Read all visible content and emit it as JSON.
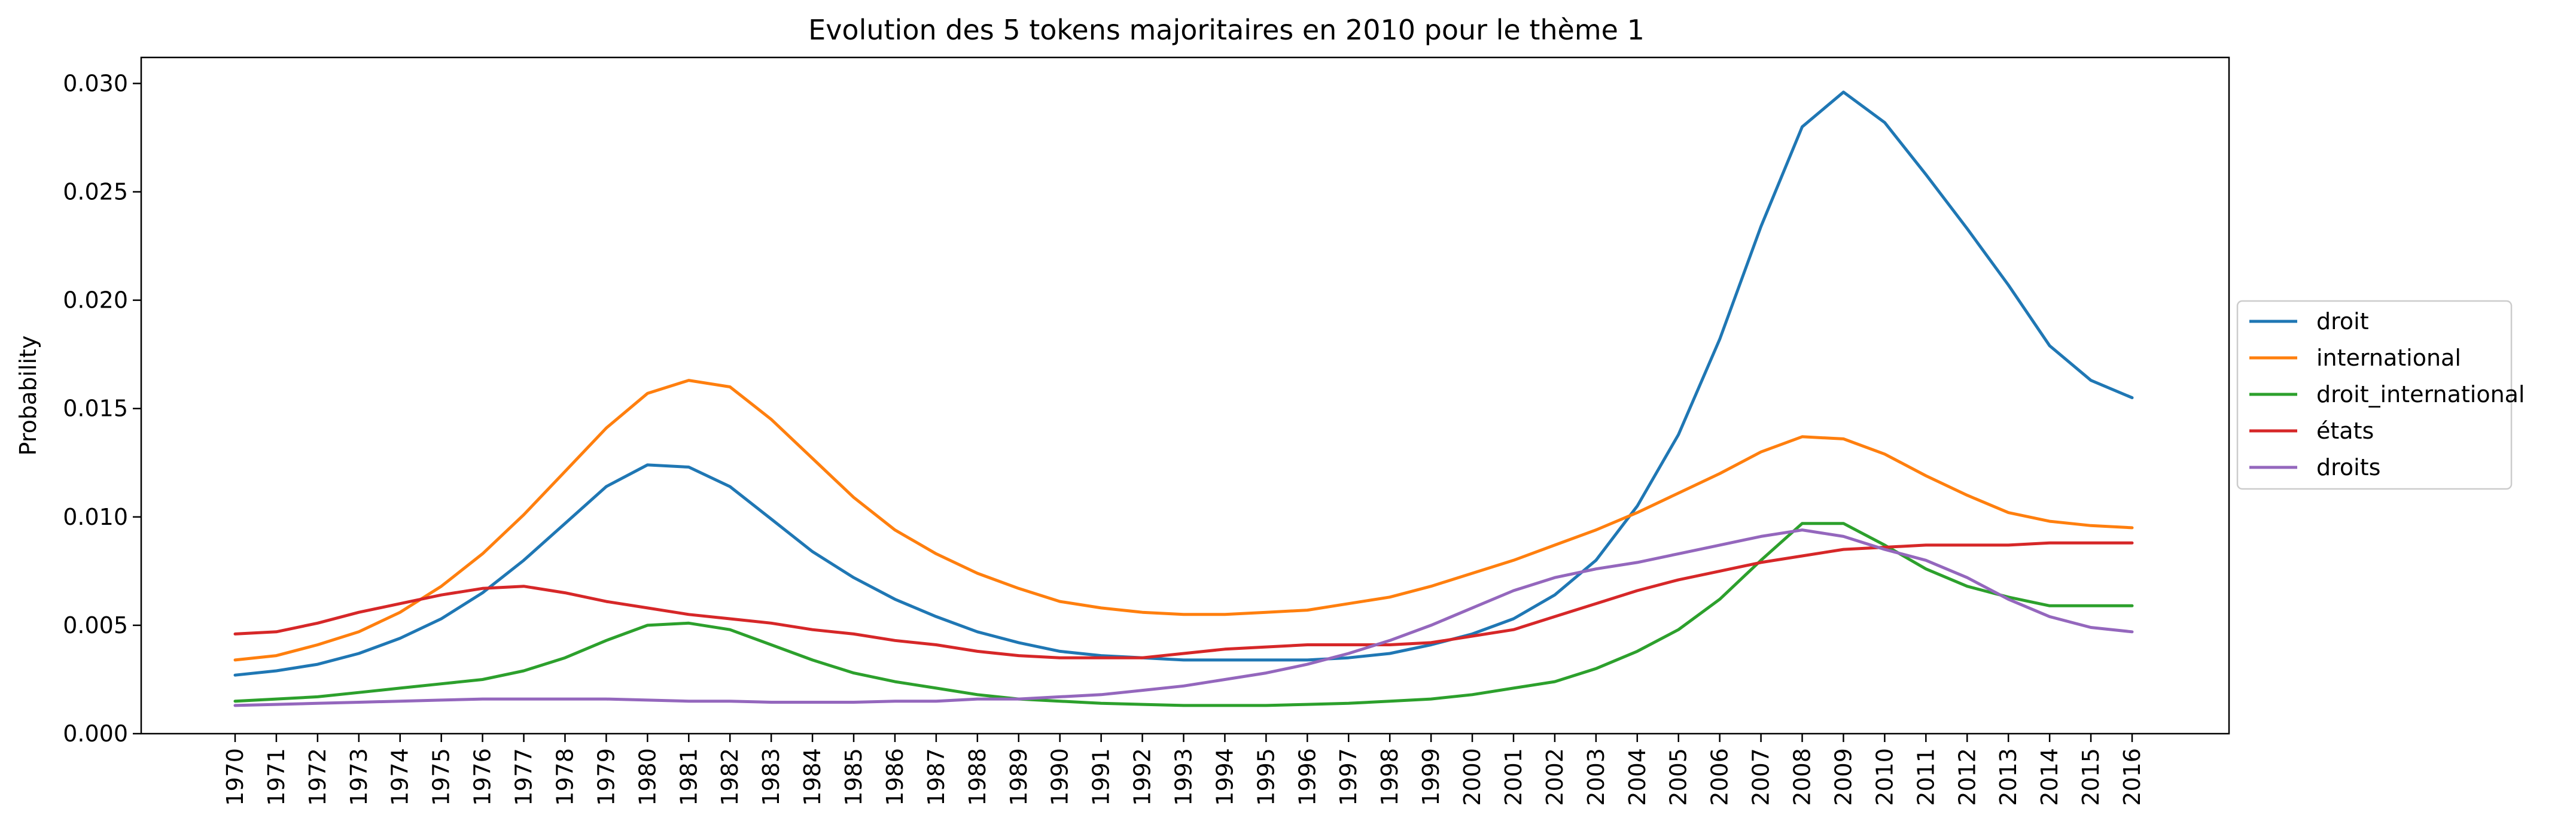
{
  "chart_data": {
    "type": "line",
    "title": "Evolution des 5 tokens majoritaires en 2010 pour le thème 1",
    "xlabel": "",
    "ylabel": "Probability",
    "x": [
      "1970",
      "1971",
      "1972",
      "1973",
      "1974",
      "1975",
      "1976",
      "1977",
      "1978",
      "1979",
      "1980",
      "1981",
      "1982",
      "1983",
      "1984",
      "1985",
      "1986",
      "1987",
      "1988",
      "1989",
      "1990",
      "1991",
      "1992",
      "1993",
      "1994",
      "1995",
      "1996",
      "1997",
      "1998",
      "1999",
      "2000",
      "2001",
      "2002",
      "2003",
      "2004",
      "2005",
      "2006",
      "2007",
      "2008",
      "2009",
      "2010",
      "2011",
      "2012",
      "2013",
      "2014",
      "2015",
      "2016"
    ],
    "ylim": [
      0,
      0.0312
    ],
    "yticks": [
      "0.000",
      "0.005",
      "0.010",
      "0.015",
      "0.020",
      "0.025",
      "0.030"
    ],
    "grid": false,
    "legend_position": "center-right, outside plot",
    "series": [
      {
        "name": "droit",
        "color": "#1f77b4",
        "values": [
          0.0027,
          0.0029,
          0.0032,
          0.0037,
          0.0044,
          0.0053,
          0.0065,
          0.008,
          0.0097,
          0.0114,
          0.0124,
          0.0123,
          0.0114,
          0.0099,
          0.0084,
          0.0072,
          0.0062,
          0.0054,
          0.0047,
          0.0042,
          0.0038,
          0.0036,
          0.0035,
          0.0034,
          0.0034,
          0.0034,
          0.0034,
          0.0035,
          0.0037,
          0.0041,
          0.0046,
          0.0053,
          0.0064,
          0.008,
          0.0105,
          0.0138,
          0.0182,
          0.0234,
          0.028,
          0.0296,
          0.0282,
          0.0258,
          0.0233,
          0.0207,
          0.0179,
          0.0163,
          0.0155
        ]
      },
      {
        "name": "international",
        "color": "#ff7f0e",
        "values": [
          0.0034,
          0.0036,
          0.0041,
          0.0047,
          0.0056,
          0.0068,
          0.0083,
          0.0101,
          0.0121,
          0.0141,
          0.0157,
          0.0163,
          0.016,
          0.0145,
          0.0127,
          0.0109,
          0.0094,
          0.0083,
          0.0074,
          0.0067,
          0.0061,
          0.0058,
          0.0056,
          0.0055,
          0.0055,
          0.0056,
          0.0057,
          0.006,
          0.0063,
          0.0068,
          0.0074,
          0.008,
          0.0087,
          0.0094,
          0.0102,
          0.0111,
          0.012,
          0.013,
          0.0137,
          0.0136,
          0.0129,
          0.0119,
          0.011,
          0.0102,
          0.0098,
          0.0096,
          0.0095
        ]
      },
      {
        "name": "droit_international",
        "color": "#2ca02c",
        "values": [
          0.0015,
          0.0016,
          0.0017,
          0.0019,
          0.0021,
          0.0023,
          0.0025,
          0.0029,
          0.0035,
          0.0043,
          0.005,
          0.0051,
          0.0048,
          0.0041,
          0.0034,
          0.0028,
          0.0024,
          0.0021,
          0.0018,
          0.0016,
          0.0015,
          0.0014,
          0.00135,
          0.0013,
          0.0013,
          0.0013,
          0.00135,
          0.0014,
          0.0015,
          0.0016,
          0.0018,
          0.0021,
          0.0024,
          0.003,
          0.0038,
          0.0048,
          0.0062,
          0.008,
          0.0097,
          0.0097,
          0.0087,
          0.0076,
          0.0068,
          0.0063,
          0.0059,
          0.0059,
          0.0059
        ]
      },
      {
        "name": "états",
        "color": "#d62728",
        "values": [
          0.0046,
          0.0047,
          0.0051,
          0.0056,
          0.006,
          0.0064,
          0.0067,
          0.0068,
          0.0065,
          0.0061,
          0.0058,
          0.0055,
          0.0053,
          0.0051,
          0.0048,
          0.0046,
          0.0043,
          0.0041,
          0.0038,
          0.0036,
          0.0035,
          0.0035,
          0.0035,
          0.0037,
          0.0039,
          0.004,
          0.0041,
          0.0041,
          0.0041,
          0.0042,
          0.0045,
          0.0048,
          0.0054,
          0.006,
          0.0066,
          0.0071,
          0.0075,
          0.0079,
          0.0082,
          0.0085,
          0.0086,
          0.0087,
          0.0087,
          0.0087,
          0.0088,
          0.0088,
          0.0088
        ]
      },
      {
        "name": "droits",
        "color": "#9467bd",
        "values": [
          0.0013,
          0.00135,
          0.0014,
          0.00145,
          0.0015,
          0.00155,
          0.0016,
          0.0016,
          0.0016,
          0.0016,
          0.00155,
          0.0015,
          0.0015,
          0.00145,
          0.00145,
          0.00145,
          0.0015,
          0.0015,
          0.0016,
          0.0016,
          0.0017,
          0.0018,
          0.002,
          0.0022,
          0.0025,
          0.0028,
          0.0032,
          0.0037,
          0.0043,
          0.005,
          0.0058,
          0.0066,
          0.0072,
          0.0076,
          0.0079,
          0.0083,
          0.0087,
          0.0091,
          0.0094,
          0.0091,
          0.0085,
          0.008,
          0.0072,
          0.0062,
          0.0054,
          0.0049,
          0.0047
        ]
      }
    ]
  }
}
